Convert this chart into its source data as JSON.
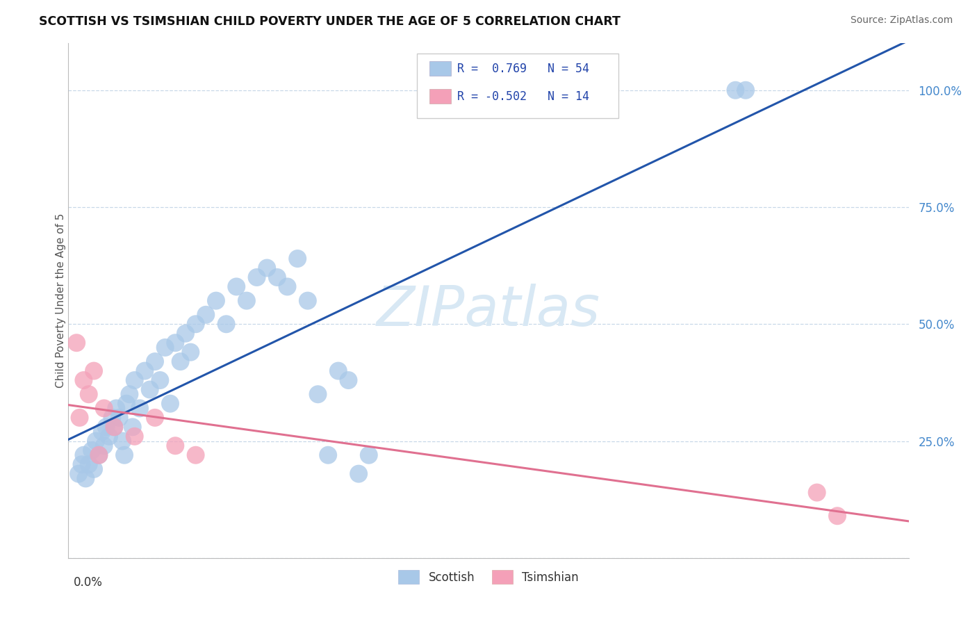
{
  "title": "SCOTTISH VS TSIMSHIAN CHILD POVERTY UNDER THE AGE OF 5 CORRELATION CHART",
  "source": "Source: ZipAtlas.com",
  "ylabel": "Child Poverty Under the Age of 5",
  "legend_blue_r": "0.769",
  "legend_blue_n": "54",
  "legend_pink_r": "-0.502",
  "legend_pink_n": "14",
  "blue_color": "#A8C8E8",
  "pink_color": "#F4A0B8",
  "blue_line_color": "#2255AA",
  "pink_line_color": "#E07090",
  "grid_color": "#C8D8E8",
  "watermark_color": "#D8E8F4",
  "scottish_x": [
    0.005,
    0.008,
    0.01,
    0.012,
    0.015,
    0.018,
    0.02,
    0.022,
    0.025,
    0.028,
    0.03,
    0.032,
    0.035,
    0.038,
    0.04,
    0.042,
    0.045,
    0.048,
    0.05,
    0.052,
    0.055,
    0.058,
    0.06,
    0.065,
    0.07,
    0.075,
    0.08,
    0.085,
    0.09,
    0.095,
    0.1,
    0.105,
    0.11,
    0.115,
    0.12,
    0.13,
    0.14,
    0.15,
    0.16,
    0.17,
    0.18,
    0.19,
    0.2,
    0.21,
    0.22,
    0.23,
    0.24,
    0.25,
    0.26,
    0.27,
    0.28,
    0.29,
    0.65,
    0.66
  ],
  "scottish_y": [
    0.18,
    0.2,
    0.22,
    0.17,
    0.2,
    0.23,
    0.19,
    0.25,
    0.22,
    0.27,
    0.24,
    0.28,
    0.26,
    0.3,
    0.28,
    0.32,
    0.3,
    0.25,
    0.22,
    0.33,
    0.35,
    0.28,
    0.38,
    0.32,
    0.4,
    0.36,
    0.42,
    0.38,
    0.45,
    0.33,
    0.46,
    0.42,
    0.48,
    0.44,
    0.5,
    0.52,
    0.55,
    0.5,
    0.58,
    0.55,
    0.6,
    0.62,
    0.6,
    0.58,
    0.64,
    0.55,
    0.35,
    0.22,
    0.4,
    0.38,
    0.18,
    0.22,
    1.0,
    1.0
  ],
  "tsimshian_x": [
    0.003,
    0.006,
    0.01,
    0.015,
    0.02,
    0.025,
    0.03,
    0.04,
    0.06,
    0.08,
    0.1,
    0.12,
    0.73,
    0.75
  ],
  "tsimshian_y": [
    0.46,
    0.3,
    0.38,
    0.35,
    0.4,
    0.22,
    0.32,
    0.28,
    0.26,
    0.3,
    0.24,
    0.22,
    0.14,
    0.09
  ],
  "xlim": [
    0.0,
    0.8
  ],
  "ylim": [
    0.0,
    1.05
  ],
  "ytick_positions": [
    0.0,
    0.25,
    0.5,
    0.75,
    1.0
  ],
  "ytick_labels_right": [
    "",
    "25.0%",
    "50.0%",
    "75.0%",
    "100.0%"
  ]
}
